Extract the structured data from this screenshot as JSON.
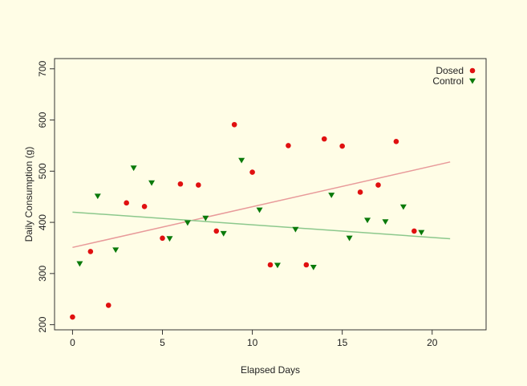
{
  "chart_data": {
    "type": "scatter",
    "title": "",
    "xlabel": "Elapsed Days",
    "ylabel": "Daily Consumption (g)",
    "xlim": [
      -1,
      23
    ],
    "ylim": [
      190,
      720
    ],
    "xticks": [
      0,
      5,
      10,
      15,
      20
    ],
    "yticks": [
      200,
      300,
      400,
      500,
      600,
      700
    ],
    "legend_position": "top-right",
    "grid": false,
    "colors": {
      "dosed": "#e01010",
      "control": "#0a7a0a",
      "dosed_fit": "#e89a9a",
      "control_fit": "#8cc88c",
      "background": "#fffde6"
    },
    "series": [
      {
        "name": "Dosed",
        "marker": "circle",
        "color": "#e01010",
        "points": [
          [
            0,
            215
          ],
          [
            1,
            343
          ],
          [
            2,
            238
          ],
          [
            3,
            438
          ],
          [
            4,
            431
          ],
          [
            5,
            369
          ],
          [
            6,
            475
          ],
          [
            7,
            473
          ],
          [
            8,
            383
          ],
          [
            9,
            591
          ],
          [
            10,
            498
          ],
          [
            11,
            317
          ],
          [
            12,
            550
          ],
          [
            13,
            317
          ],
          [
            14,
            563
          ],
          [
            15,
            549
          ],
          [
            16,
            459
          ],
          [
            17,
            473
          ],
          [
            18,
            558
          ],
          [
            19,
            383
          ]
        ],
        "fit": [
          [
            0,
            351
          ],
          [
            21,
            518
          ]
        ]
      },
      {
        "name": "Control",
        "marker": "triangle-down",
        "color": "#0a7a0a",
        "points": [
          [
            0.4,
            319
          ],
          [
            1.4,
            451
          ],
          [
            2.4,
            346
          ],
          [
            3.4,
            506
          ],
          [
            4.4,
            477
          ],
          [
            5.4,
            368
          ],
          [
            6.4,
            399
          ],
          [
            7.4,
            408
          ],
          [
            8.4,
            378
          ],
          [
            9.4,
            521
          ],
          [
            10.4,
            424
          ],
          [
            11.4,
            316
          ],
          [
            12.4,
            386
          ],
          [
            13.4,
            312
          ],
          [
            14.4,
            453
          ],
          [
            15.4,
            369
          ],
          [
            16.4,
            404
          ],
          [
            17.4,
            401
          ],
          [
            18.4,
            430
          ],
          [
            19.4,
            380
          ]
        ],
        "fit": [
          [
            0,
            420
          ],
          [
            21,
            368
          ]
        ]
      }
    ]
  }
}
